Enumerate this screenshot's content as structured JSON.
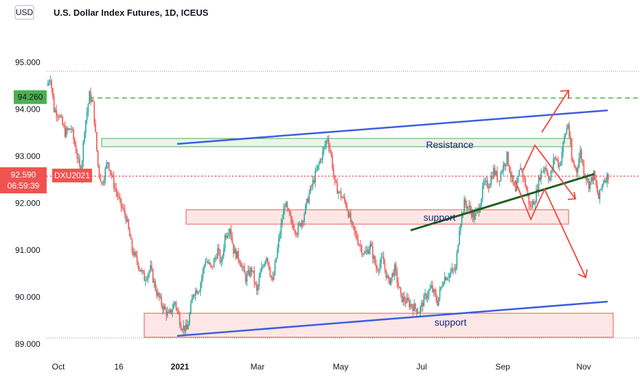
{
  "chart_data": {
    "type": "candlestick",
    "title": "U.S. Dollar Index Futures, 1D, ICEUS",
    "currency_badge": "USD",
    "y_ticks": [
      89.0,
      90.0,
      91.0,
      92.0,
      93.0,
      94.0,
      95.0
    ],
    "y_tick_labels": [
      "89.000",
      "90.000",
      "91.000",
      "92.000",
      "93.000",
      "94.000",
      "95.000"
    ],
    "x_ticks": [
      "Oct",
      "16",
      "2021",
      "Mar",
      "May",
      "Jul",
      "Sep",
      "Nov"
    ],
    "price_markers": {
      "high_level": {
        "value": 94.26,
        "label": "94.260",
        "color": "#4caf50"
      },
      "last_price": {
        "value": 92.59,
        "label": "92.590",
        "symbol": "DXU2021",
        "countdown": "06:59:39",
        "color": "#ef5350"
      }
    },
    "colors": {
      "up": "#26a69a",
      "down": "#ef5350",
      "trendline": "#3c5ddf",
      "support_line": "#1b5e20",
      "arrow": "#f44336"
    },
    "path": [
      [
        0,
        94.5
      ],
      [
        3,
        94.7
      ],
      [
        6,
        94.0
      ],
      [
        10,
        93.9
      ],
      [
        15,
        93.5
      ],
      [
        20,
        93.6
      ],
      [
        25,
        93.0
      ],
      [
        28,
        92.6
      ],
      [
        31,
        93.6
      ],
      [
        35,
        94.3
      ],
      [
        38,
        94.1
      ],
      [
        42,
        92.8
      ],
      [
        45,
        92.4
      ],
      [
        50,
        92.9
      ],
      [
        55,
        92.4
      ],
      [
        60,
        92.0
      ],
      [
        65,
        91.7
      ],
      [
        70,
        91.0
      ],
      [
        75,
        90.7
      ],
      [
        80,
        90.4
      ],
      [
        85,
        90.6
      ],
      [
        90,
        90.1
      ],
      [
        95,
        89.8
      ],
      [
        100,
        89.6
      ],
      [
        105,
        89.9
      ],
      [
        110,
        89.4
      ],
      [
        115,
        89.3
      ],
      [
        120,
        90.1
      ],
      [
        125,
        90.2
      ],
      [
        130,
        90.8
      ],
      [
        135,
        90.6
      ],
      [
        140,
        91.0
      ],
      [
        143,
        90.7
      ],
      [
        146,
        91.3
      ],
      [
        150,
        91.5
      ],
      [
        153,
        91.0
      ],
      [
        158,
        90.8
      ],
      [
        163,
        90.4
      ],
      [
        168,
        90.6
      ],
      [
        172,
        90.1
      ],
      [
        175,
        90.5
      ],
      [
        180,
        90.9
      ],
      [
        185,
        90.3
      ],
      [
        190,
        91.2
      ],
      [
        195,
        92.0
      ],
      [
        200,
        91.6
      ],
      [
        205,
        91.4
      ],
      [
        210,
        91.7
      ],
      [
        215,
        92.2
      ],
      [
        220,
        92.6
      ],
      [
        225,
        93.0
      ],
      [
        230,
        93.4
      ],
      [
        233,
        93.0
      ],
      [
        236,
        92.4
      ],
      [
        240,
        92.2
      ],
      [
        245,
        92.0
      ],
      [
        250,
        91.5
      ],
      [
        255,
        91.2
      ],
      [
        260,
        90.9
      ],
      [
        265,
        91.1
      ],
      [
        270,
        90.6
      ],
      [
        275,
        90.8
      ],
      [
        280,
        90.3
      ],
      [
        285,
        90.6
      ],
      [
        290,
        90.0
      ],
      [
        295,
        89.9
      ],
      [
        300,
        89.8
      ],
      [
        305,
        89.7
      ],
      [
        310,
        90.0
      ],
      [
        315,
        90.2
      ],
      [
        320,
        89.9
      ],
      [
        325,
        90.4
      ],
      [
        330,
        90.5
      ],
      [
        335,
        90.6
      ],
      [
        338,
        91.5
      ],
      [
        342,
        92.0
      ],
      [
        346,
        91.9
      ],
      [
        350,
        91.7
      ],
      [
        354,
        91.9
      ],
      [
        358,
        92.4
      ],
      [
        362,
        92.4
      ],
      [
        366,
        92.7
      ],
      [
        370,
        92.5
      ],
      [
        374,
        92.8
      ],
      [
        377,
        93.0
      ],
      [
        380,
        92.6
      ],
      [
        384,
        92.2
      ],
      [
        388,
        92.8
      ],
      [
        392,
        92.4
      ],
      [
        396,
        91.9
      ],
      [
        400,
        92.1
      ],
      [
        404,
        92.6
      ],
      [
        408,
        92.8
      ],
      [
        412,
        92.5
      ],
      [
        416,
        93.0
      ],
      [
        420,
        92.8
      ],
      [
        424,
        93.4
      ],
      [
        427,
        93.7
      ],
      [
        430,
        92.9
      ],
      [
        434,
        92.7
      ],
      [
        437,
        93.1
      ],
      [
        440,
        92.7
      ],
      [
        444,
        92.4
      ],
      [
        448,
        92.6
      ],
      [
        452,
        92.1
      ],
      [
        456,
        92.5
      ],
      [
        460,
        92.59
      ]
    ],
    "annotations": [
      {
        "kind": "text",
        "text": "Resistance",
        "color": "#1a237e"
      },
      {
        "kind": "text",
        "text": "support",
        "color": "#1a237e"
      },
      {
        "kind": "text",
        "text": "support",
        "color": "#1a237e"
      }
    ]
  }
}
